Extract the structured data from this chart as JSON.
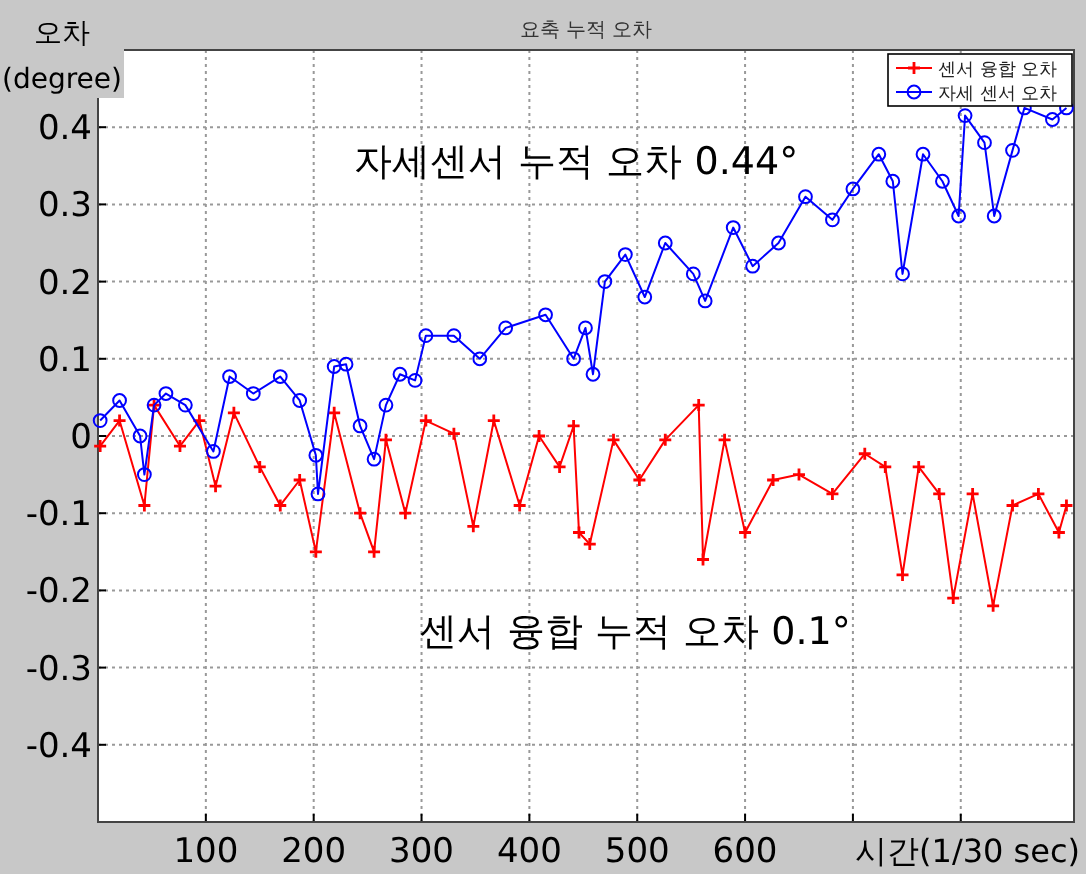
{
  "chart_data": {
    "type": "line",
    "title": "요축 누적 오차",
    "xlabel": "시간(1/30 sec)",
    "ylabel": "오차 (degree)",
    "xlim": [
      0,
      905
    ],
    "ylim": [
      -0.5,
      0.5
    ],
    "xticks": [
      100,
      200,
      300,
      400,
      500,
      600,
      {
        "value": 700,
        "label": null
      },
      {
        "value": 800,
        "label": null
      }
    ],
    "yticks": [
      -0.4,
      -0.3,
      -0.2,
      -0.1,
      0,
      0.1,
      0.2,
      0.3,
      0.4
    ],
    "grid": true,
    "legend": "top right",
    "annotations": [
      "자세센서 누적 오차 0.44°",
      "센서 융합 누적 오차 0.1°"
    ],
    "series": [
      {
        "name": "센서 융합 오차",
        "color": "#ff0000",
        "marker": "cross",
        "x": [
          2,
          20,
          43,
          52,
          76,
          94,
          109,
          126,
          150,
          169,
          187,
          202,
          219,
          243,
          256,
          267,
          285,
          304,
          330,
          348,
          367,
          391,
          409,
          428,
          441,
          446,
          456,
          478,
          502,
          526,
          557,
          561,
          581,
          600,
          626,
          650,
          681,
          711,
          730,
          746,
          761,
          780,
          793,
          811,
          830,
          848,
          872,
          891,
          898
        ],
        "values": [
          -0.013,
          0.02,
          -0.09,
          0.04,
          -0.013,
          0.02,
          -0.065,
          0.03,
          -0.04,
          -0.09,
          -0.057,
          -0.15,
          0.03,
          -0.1,
          -0.15,
          -0.005,
          -0.1,
          0.02,
          0.003,
          -0.117,
          0.02,
          -0.09,
          0,
          -0.04,
          0.013,
          -0.125,
          -0.14,
          -0.005,
          -0.057,
          -0.005,
          0.04,
          -0.16,
          -0.005,
          -0.125,
          -0.057,
          -0.05,
          -0.075,
          -0.023,
          -0.04,
          -0.18,
          -0.04,
          -0.075,
          -0.21,
          -0.075,
          -0.22,
          -0.09,
          -0.075,
          -0.125,
          -0.09
        ]
      },
      {
        "name": "자세 센서 오차",
        "color": "#0000ff",
        "marker": "circle",
        "x": [
          2,
          20,
          39,
          43,
          52,
          63,
          81,
          107,
          122,
          144,
          169,
          187,
          202,
          204,
          219,
          230,
          243,
          256,
          267,
          280,
          294,
          304,
          330,
          354,
          378,
          415,
          441,
          452,
          459,
          470,
          489,
          507,
          526,
          552,
          563,
          589,
          607,
          631,
          656,
          681,
          700,
          724,
          737,
          746,
          765,
          783,
          798,
          804,
          822,
          831,
          848,
          859,
          885,
          898
        ],
        "values": [
          0.02,
          0.046,
          0,
          -0.05,
          0.04,
          0.055,
          0.04,
          -0.02,
          0.077,
          0.055,
          0.077,
          0.046,
          -0.025,
          -0.075,
          0.09,
          0.093,
          0.013,
          -0.03,
          0.04,
          0.08,
          0.072,
          0.13,
          0.13,
          0.1,
          0.14,
          0.157,
          0.1,
          0.14,
          0.08,
          0.2,
          0.235,
          0.18,
          0.25,
          0.21,
          0.175,
          0.27,
          0.22,
          0.25,
          0.31,
          0.28,
          0.32,
          0.365,
          0.33,
          0.21,
          0.365,
          0.33,
          0.285,
          0.415,
          0.38,
          0.285,
          0.37,
          0.425,
          0.41,
          0.425
        ]
      }
    ]
  }
}
